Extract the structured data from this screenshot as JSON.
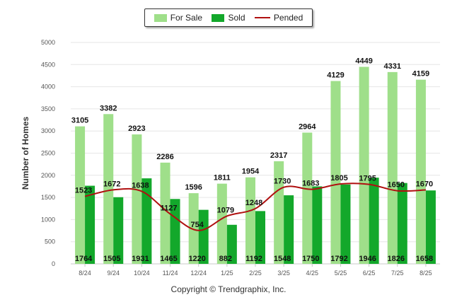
{
  "chart_data": {
    "type": "bar",
    "categories": [
      "8/24",
      "9/24",
      "10/24",
      "11/24",
      "12/24",
      "1/25",
      "2/25",
      "3/25",
      "4/25",
      "5/25",
      "6/25",
      "7/25",
      "8/25"
    ],
    "series": [
      {
        "name": "For Sale",
        "kind": "bar",
        "color": "#9fdf8a",
        "values": [
          3105,
          3382,
          2923,
          2286,
          1596,
          1811,
          1954,
          2317,
          2964,
          4129,
          4449,
          4331,
          4159
        ]
      },
      {
        "name": "Sold",
        "kind": "bar",
        "color": "#13a82b",
        "values": [
          1764,
          1505,
          1931,
          1465,
          1220,
          882,
          1192,
          1548,
          1750,
          1792,
          1946,
          1826,
          1658
        ]
      },
      {
        "name": "Pended",
        "kind": "line",
        "color": "#b01010",
        "values": [
          1523,
          1672,
          1638,
          1127,
          754,
          1079,
          1248,
          1730,
          1683,
          1805,
          1795,
          1650,
          1670
        ]
      }
    ],
    "ylabel": "Number of Homes",
    "xlabel": "",
    "ylim": [
      0,
      5000
    ],
    "yticks": [
      0,
      500,
      1000,
      1500,
      2000,
      2500,
      3000,
      3500,
      4000,
      4500,
      5000
    ],
    "grid": true,
    "legend_position": "top-center"
  },
  "legend": {
    "items": [
      {
        "label": "For Sale",
        "color": "#9fdf8a",
        "kind": "bar"
      },
      {
        "label": "Sold",
        "color": "#13a82b",
        "kind": "bar"
      },
      {
        "label": "Pended",
        "color": "#b01010",
        "kind": "line"
      }
    ]
  },
  "footer": {
    "copyright": "Copyright © Trendgraphix, Inc."
  }
}
